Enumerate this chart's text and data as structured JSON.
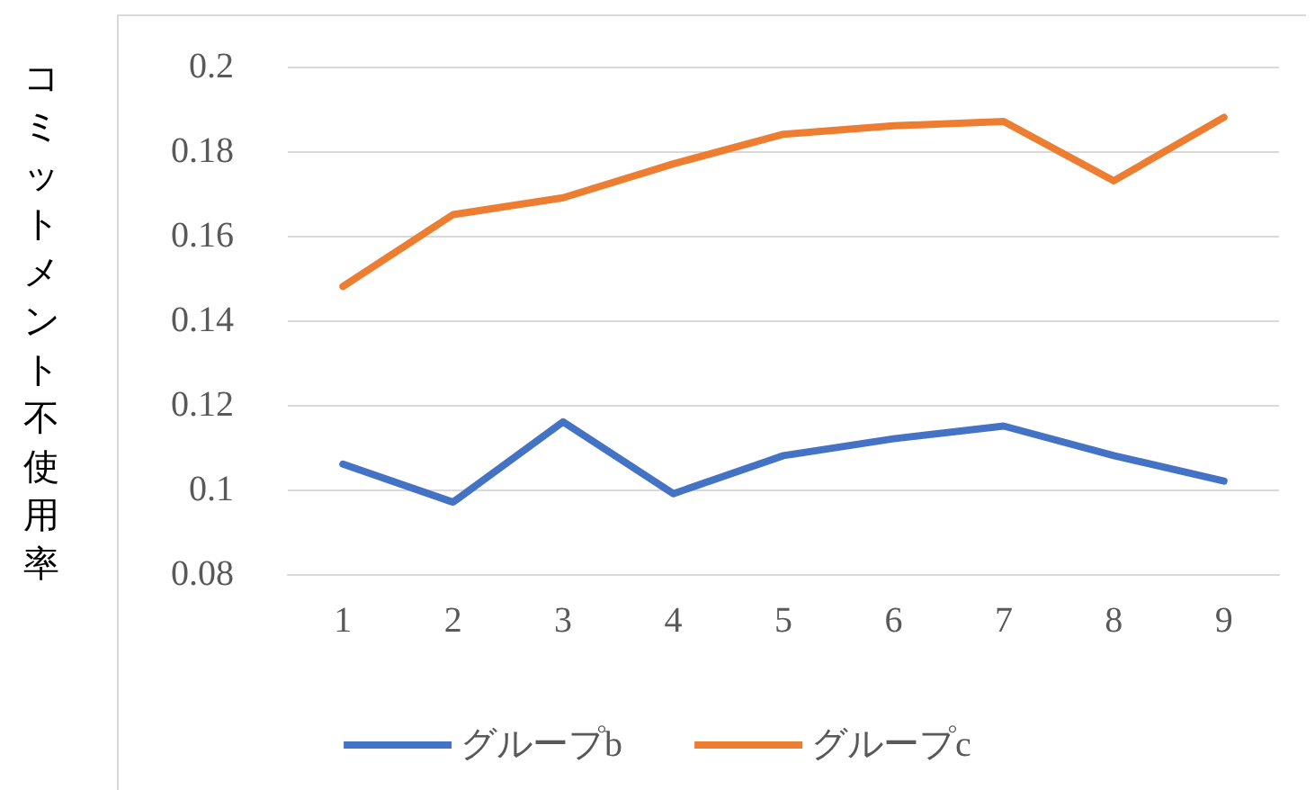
{
  "chart_data": {
    "type": "line",
    "ylabel": "コミットメント不使用率",
    "categories": [
      "1",
      "2",
      "3",
      "4",
      "5",
      "6",
      "7",
      "8",
      "9"
    ],
    "series": [
      {
        "name": "グループb",
        "color": "#4472c4",
        "values": [
          0.106,
          0.097,
          0.116,
          0.099,
          0.108,
          0.112,
          0.115,
          0.108,
          0.102
        ]
      },
      {
        "name": "グループc",
        "color": "#ed7d31",
        "values": [
          0.148,
          0.165,
          0.169,
          0.177,
          0.184,
          0.186,
          0.187,
          0.173,
          0.188
        ]
      }
    ],
    "ylim": [
      0.08,
      0.2
    ],
    "yticks": [
      0.08,
      0.1,
      0.12,
      0.14,
      0.16,
      0.18,
      0.2
    ],
    "grid": "y",
    "legend": "bottom",
    "marker": "none",
    "line_style": "solid"
  }
}
